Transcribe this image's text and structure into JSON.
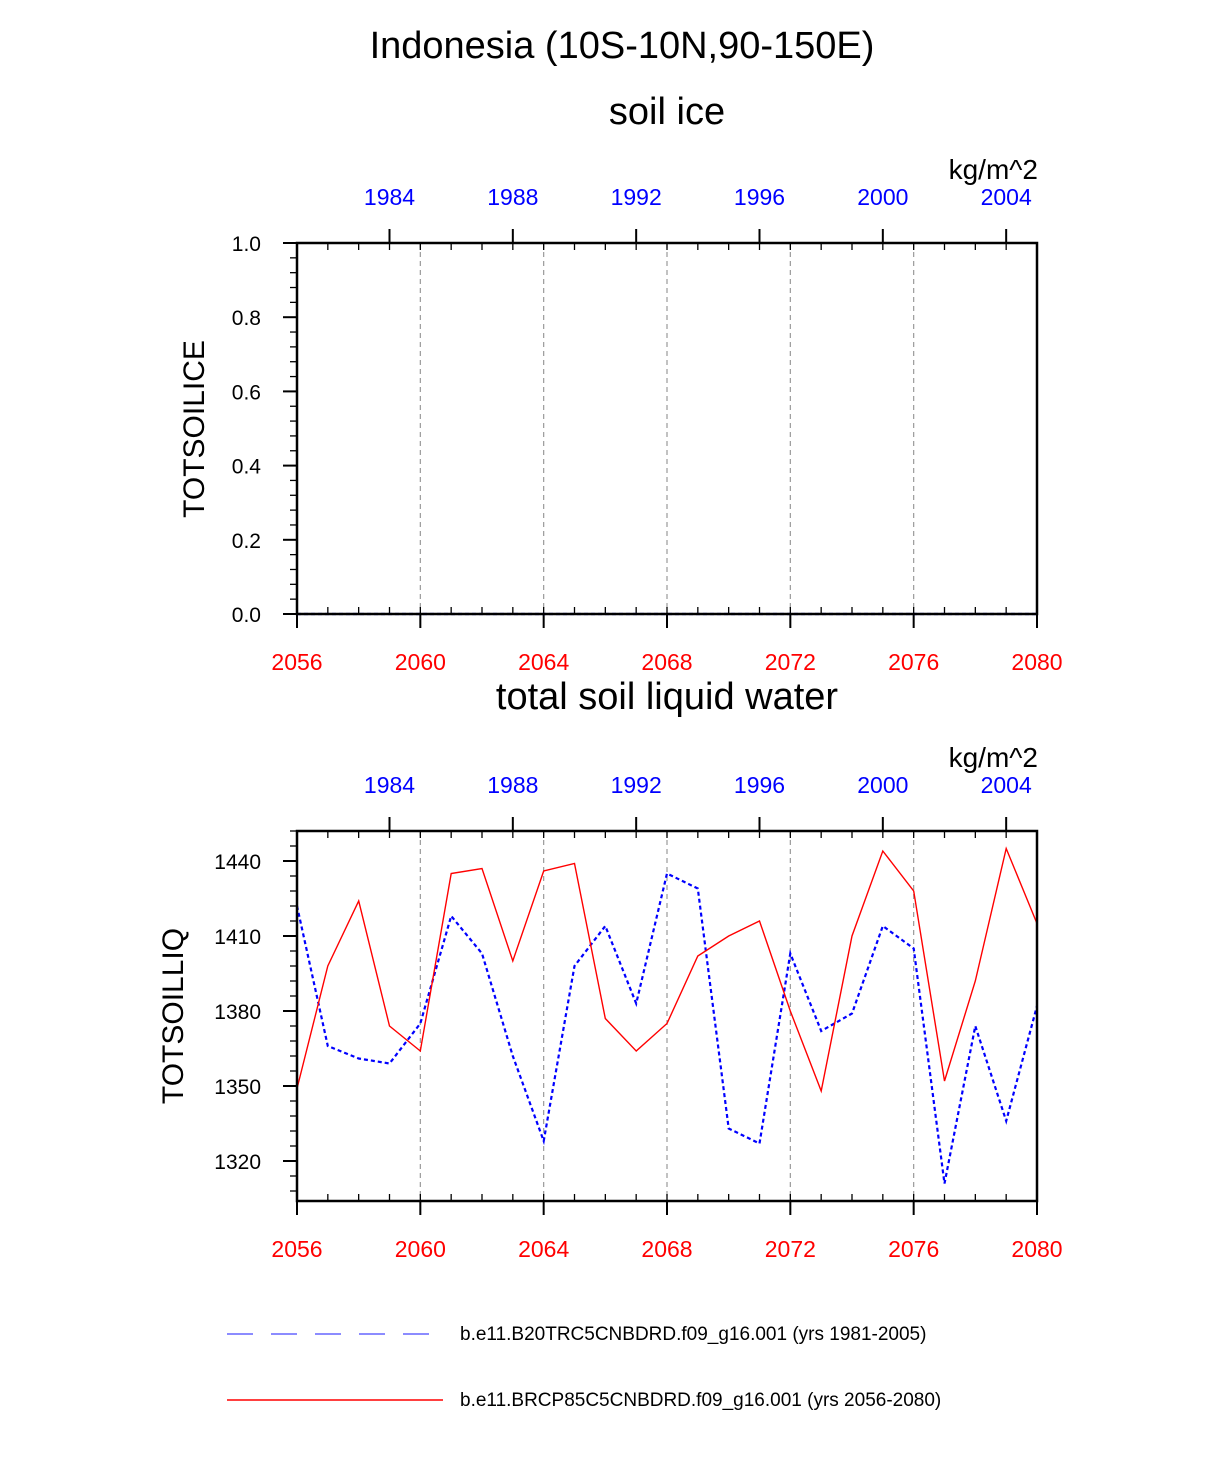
{
  "figure": {
    "title": "Indonesia (10S-10N,90-150E)"
  },
  "colors": {
    "bottom_axis": "#ff0000",
    "top_axis": "#0000ff",
    "grid": "#999999",
    "series_red": "#ff0000",
    "series_blue": "#0000ff",
    "legend_blue": "#6666ff"
  },
  "chart_data": [
    {
      "type": "line",
      "title": "soil ice",
      "ylabel": "TOTSOILICE",
      "units": "kg/m^2",
      "x_bottom": {
        "range": [
          2056,
          2080
        ],
        "tick_values": [
          2056,
          2060,
          2064,
          2068,
          2072,
          2076,
          2080
        ]
      },
      "x_top": {
        "range": [
          1981,
          2005
        ],
        "tick_values": [
          1984,
          1988,
          1992,
          1996,
          2000,
          2004
        ]
      },
      "ylim": [
        0.0,
        1.0
      ],
      "y_ticks": [
        "0.0",
        "0.2",
        "0.4",
        "0.6",
        "0.8",
        "1.0"
      ],
      "grid": "vertical dashed",
      "series": [
        {
          "axis": "top",
          "style": "dashed",
          "x": [
            1981,
            1982,
            1983,
            1984,
            1985,
            1986,
            1987,
            1988,
            1989,
            1990,
            1991,
            1992,
            1993,
            1994,
            1995,
            1996,
            1997,
            1998,
            1999,
            2000,
            2001,
            2002,
            2003,
            2004,
            2005
          ],
          "values": [
            0,
            0,
            0,
            0,
            0,
            0,
            0,
            0,
            0,
            0,
            0,
            0,
            0,
            0,
            0,
            0,
            0,
            0,
            0,
            0,
            0,
            0,
            0,
            0,
            0
          ]
        },
        {
          "axis": "bottom",
          "style": "solid",
          "x": [
            2056,
            2057,
            2058,
            2059,
            2060,
            2061,
            2062,
            2063,
            2064,
            2065,
            2066,
            2067,
            2068,
            2069,
            2070,
            2071,
            2072,
            2073,
            2074,
            2075,
            2076,
            2077,
            2078,
            2079,
            2080
          ],
          "values": [
            0,
            0,
            0,
            0,
            0,
            0,
            0,
            0,
            0,
            0,
            0,
            0,
            0,
            0,
            0,
            0,
            0,
            0,
            0,
            0,
            0,
            0,
            0,
            0,
            0
          ]
        }
      ]
    },
    {
      "type": "line",
      "title": "total soil liquid water",
      "ylabel": "TOTSOILLIQ",
      "units": "kg/m^2",
      "x_bottom": {
        "range": [
          2056,
          2080
        ],
        "tick_values": [
          2056,
          2060,
          2064,
          2068,
          2072,
          2076,
          2080
        ]
      },
      "x_top": {
        "range": [
          1981,
          2005
        ],
        "tick_values": [
          1984,
          1988,
          1992,
          1996,
          2000,
          2004
        ]
      },
      "ylim": [
        1304,
        1452
      ],
      "y_ticks": [
        "1320",
        "1350",
        "1380",
        "1410",
        "1440"
      ],
      "grid": "vertical dashed",
      "series": [
        {
          "axis": "top",
          "style": "dashed",
          "x": [
            1981,
            1982,
            1983,
            1984,
            1985,
            1986,
            1987,
            1988,
            1989,
            1990,
            1991,
            1992,
            1993,
            1994,
            1995,
            1996,
            1997,
            1998,
            1999,
            2000,
            2001,
            2002,
            2003,
            2004,
            2005
          ],
          "values": [
            1422,
            1366,
            1361,
            1359,
            1375,
            1418,
            1403,
            1362,
            1328,
            1398,
            1414,
            1383,
            1435,
            1429,
            1333,
            1327,
            1403,
            1372,
            1379,
            1414,
            1405,
            1311,
            1374,
            1336,
            1382
          ]
        },
        {
          "axis": "bottom",
          "style": "solid",
          "x": [
            2056,
            2057,
            2058,
            2059,
            2060,
            2061,
            2062,
            2063,
            2064,
            2065,
            2066,
            2067,
            2068,
            2069,
            2070,
            2071,
            2072,
            2073,
            2074,
            2075,
            2076,
            2077,
            2078,
            2079,
            2080
          ],
          "values": [
            1349,
            1398,
            1424,
            1374,
            1364,
            1435,
            1437,
            1400,
            1436,
            1439,
            1377,
            1364,
            1375,
            1402,
            1410,
            1416,
            1380,
            1348,
            1410,
            1444,
            1428,
            1352,
            1392,
            1445,
            1415
          ]
        }
      ]
    }
  ],
  "legend": [
    {
      "style": "dashed",
      "label": "b.e11.B20TRC5CNBDRD.f09_g16.001 (yrs 1981-2005)"
    },
    {
      "style": "solid",
      "label": "b.e11.BRCP85C5CNBDRD.f09_g16.001 (yrs 2056-2080)"
    }
  ]
}
